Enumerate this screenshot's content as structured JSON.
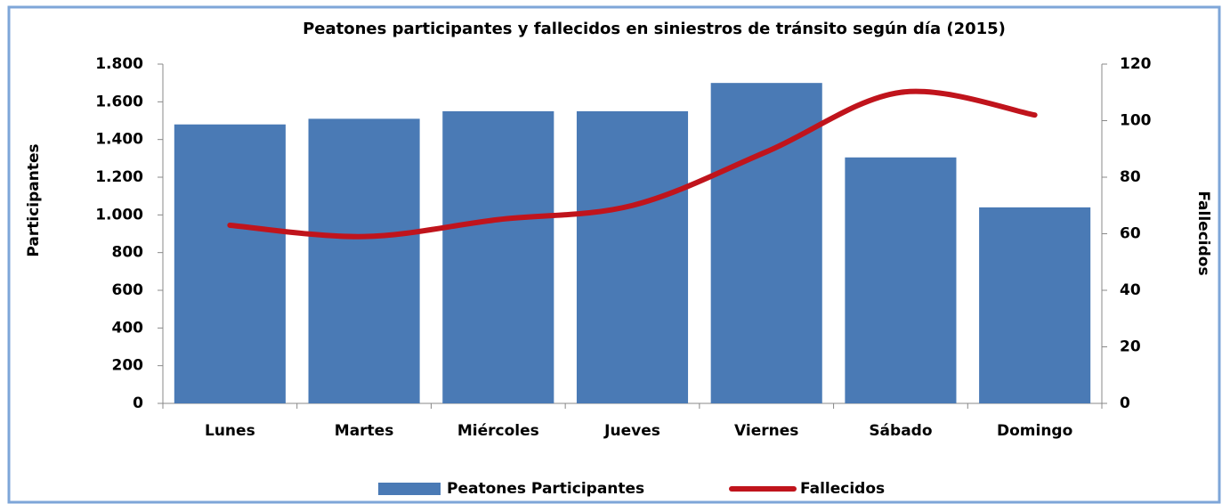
{
  "chart_data": {
    "type": "bar",
    "title": "Peatones participantes y fallecidos en siniestros de tránsito según día (2015)",
    "y_label": "Participantes",
    "y2_label": "Fallecidos",
    "categories": [
      "Lunes",
      "Martes",
      "Miércoles",
      "Jueves",
      "Viernes",
      "Sábado",
      "Domingo"
    ],
    "series": [
      {
        "name": "Peatones Participantes",
        "type": "bar",
        "color": "#4a7ab5",
        "values": [
          1480,
          1510,
          1550,
          1550,
          1700,
          1305,
          1040
        ]
      },
      {
        "name": "Fallecidos",
        "type": "line",
        "axis": "y2",
        "color": "#c0141c",
        "values": [
          63,
          59,
          65,
          70,
          89,
          110,
          102
        ]
      }
    ],
    "ylim": [
      0,
      1800
    ],
    "yticks": [
      0,
      200,
      400,
      600,
      800,
      {
        "value": 1000,
        "label": "1.000"
      },
      {
        "value": 1200,
        "label": "1.200"
      },
      {
        "value": 1400,
        "label": "1.400"
      },
      {
        "value": 1600,
        "label": "1.600"
      },
      {
        "value": 1800,
        "label": "1.800"
      }
    ],
    "y2lim": [
      0,
      120
    ],
    "y2ticks": [
      0,
      20,
      40,
      60,
      80,
      100,
      120
    ],
    "grid": false,
    "legend": "bottom"
  }
}
